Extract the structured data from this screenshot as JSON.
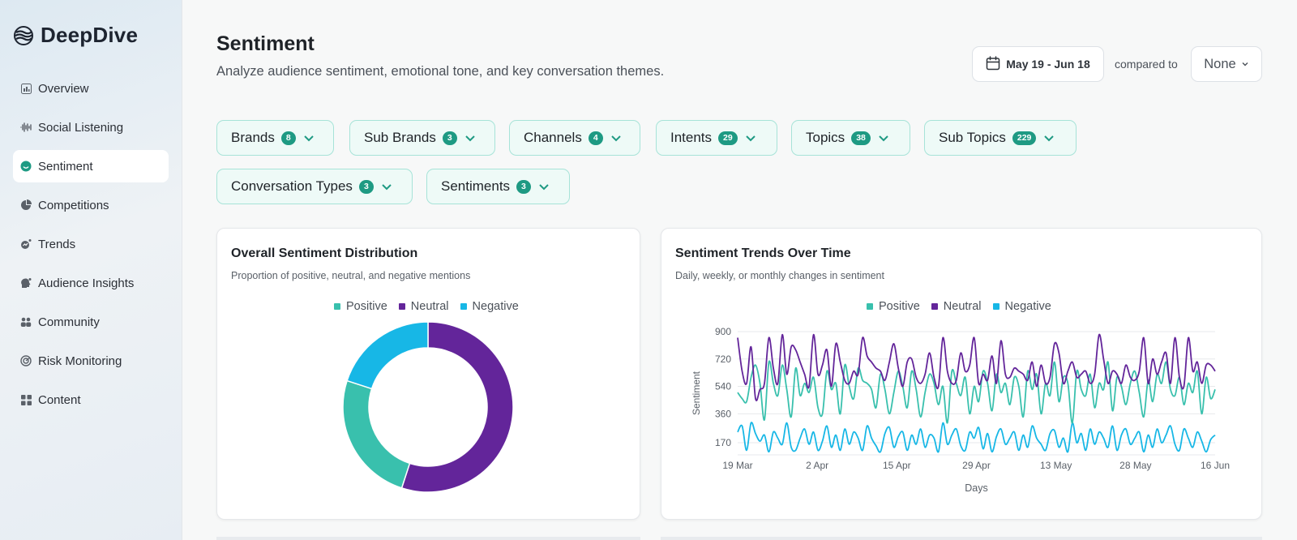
{
  "app": {
    "name": "DeepDive"
  },
  "sidebar": {
    "items": [
      {
        "label": "Overview",
        "icon": "bar-chart-icon",
        "active": false
      },
      {
        "label": "Social Listening",
        "icon": "waveform-icon",
        "active": false
      },
      {
        "label": "Sentiment",
        "icon": "smile-icon",
        "active": true
      },
      {
        "label": "Competitions",
        "icon": "pie-icon",
        "active": false
      },
      {
        "label": "Trends",
        "icon": "trend-icon",
        "active": false
      },
      {
        "label": "Audience Insights",
        "icon": "head-icon",
        "active": false
      },
      {
        "label": "Community",
        "icon": "people-icon",
        "active": false
      },
      {
        "label": "Risk Monitoring",
        "icon": "radar-icon",
        "active": false
      },
      {
        "label": "Content",
        "icon": "grid-icon",
        "active": false
      }
    ]
  },
  "header": {
    "title": "Sentiment",
    "subtitle": "Analyze audience sentiment, emotional tone, and key conversation themes.",
    "date_range": "May 19 - Jun 18",
    "compared_label": "compared to",
    "compare_value": "None"
  },
  "filters": [
    {
      "label": "Brands",
      "count": "8"
    },
    {
      "label": "Sub Brands",
      "count": "3"
    },
    {
      "label": "Channels",
      "count": "4"
    },
    {
      "label": "Intents",
      "count": "29"
    },
    {
      "label": "Topics",
      "count": "38"
    },
    {
      "label": "Sub Topics",
      "count": "229"
    },
    {
      "label": "Conversation Types",
      "count": "3"
    },
    {
      "label": "Sentiments",
      "count": "3"
    }
  ],
  "colors": {
    "positive": "#39c0ad",
    "neutral": "#63259a",
    "negative": "#17b7e6",
    "accent": "#1e9a83"
  },
  "cards": {
    "distribution": {
      "title": "Overall Sentiment Distribution",
      "subtitle": "Proportion of positive, neutral, and negative mentions"
    },
    "trends": {
      "title": "Sentiment Trends Over Time",
      "subtitle": "Daily, weekly, or monthly changes in sentiment"
    }
  },
  "chart_data": [
    {
      "type": "pie",
      "donut": true,
      "legend": [
        "Positive",
        "Neutral",
        "Negative"
      ],
      "slices": [
        {
          "name": "Neutral",
          "value": 55
        },
        {
          "name": "Positive",
          "value": 25
        },
        {
          "name": "Negative",
          "value": 20
        }
      ]
    },
    {
      "type": "line",
      "xlabel": "Days",
      "ylabel": "Sentiment",
      "x_tick_labels": [
        "19 Mar",
        "2 Apr",
        "15 Apr",
        "29 Apr",
        "13 May",
        "28 May",
        "16 Jun"
      ],
      "y_ticks": [
        170,
        360,
        540,
        720,
        900
      ],
      "ylim": [
        90,
        900
      ],
      "legend": [
        "Positive",
        "Neutral",
        "Negative"
      ],
      "grid": true,
      "series": [
        {
          "name": "Neutral",
          "values": [
            860,
            640,
            560,
            800,
            460,
            520,
            560,
            860,
            660,
            560,
            880,
            620,
            800,
            780,
            700,
            620,
            540,
            880,
            620,
            680,
            780,
            540,
            820,
            700,
            580,
            560,
            640,
            620,
            860,
            740,
            700,
            660,
            640,
            580,
            700,
            820,
            660,
            540,
            700,
            720,
            600,
            560,
            620,
            760,
            600,
            540,
            860,
            640,
            560,
            580,
            760,
            640,
            680,
            860,
            560,
            620,
            580,
            740,
            560,
            840,
            620,
            600,
            660,
            640,
            620,
            580,
            700,
            540,
            680,
            560,
            600,
            820,
            760,
            560,
            640,
            700,
            600,
            620,
            640,
            560,
            620,
            880,
            720,
            560,
            640,
            620,
            560,
            680,
            600,
            580,
            640,
            860,
            560,
            720,
            620,
            700,
            760,
            560,
            860,
            600,
            540,
            860,
            640,
            700,
            560,
            680,
            680,
            640
          ]
        },
        {
          "name": "Positive",
          "values": [
            500,
            460,
            440,
            600,
            680,
            560,
            320,
            700,
            560,
            480,
            680,
            520,
            340,
            660,
            480,
            560,
            500,
            600,
            400,
            360,
            640,
            520,
            560,
            360,
            680,
            540,
            460,
            660,
            580,
            560,
            520,
            400,
            620,
            520,
            360,
            500,
            640,
            540,
            400,
            640,
            520,
            340,
            500,
            620,
            560,
            420,
            540,
            300,
            640,
            560,
            480,
            600,
            360,
            540,
            440,
            640,
            560,
            380,
            620,
            500,
            560,
            420,
            600,
            540,
            340,
            640,
            520,
            620,
            360,
            560,
            480,
            700,
            440,
            600,
            560,
            300,
            640,
            520,
            480,
            620,
            400,
            560,
            520,
            700,
            380,
            600,
            540,
            420,
            560,
            640,
            500,
            340,
            580,
            440,
            620,
            560,
            700,
            520,
            480,
            600,
            420,
            560,
            500,
            640,
            360,
            600,
            460,
            520
          ]
        },
        {
          "name": "Negative",
          "values": [
            240,
            280,
            120,
            300,
            230,
            180,
            220,
            110,
            240,
            200,
            160,
            300,
            140,
            120,
            200,
            260,
            160,
            240,
            120,
            180,
            280,
            140,
            220,
            120,
            260,
            160,
            240,
            200,
            120,
            280,
            200,
            150,
            110,
            230,
            270,
            140,
            210,
            240,
            120,
            220,
            160,
            260,
            140,
            220,
            200,
            110,
            300,
            160,
            220,
            260,
            150,
            120,
            240,
            200,
            270,
            130,
            230,
            110,
            210,
            260,
            160,
            200,
            240,
            120,
            220,
            140,
            280,
            200,
            160,
            120,
            230,
            250,
            140,
            200,
            110,
            300,
            170,
            230,
            120,
            260,
            160,
            240,
            200,
            140,
            280,
            120,
            220,
            260,
            160,
            200,
            240,
            110,
            220,
            140,
            260,
            170,
            220,
            280,
            160,
            120,
            260,
            200,
            140,
            240,
            180,
            110,
            190,
            220
          ]
        }
      ]
    }
  ]
}
